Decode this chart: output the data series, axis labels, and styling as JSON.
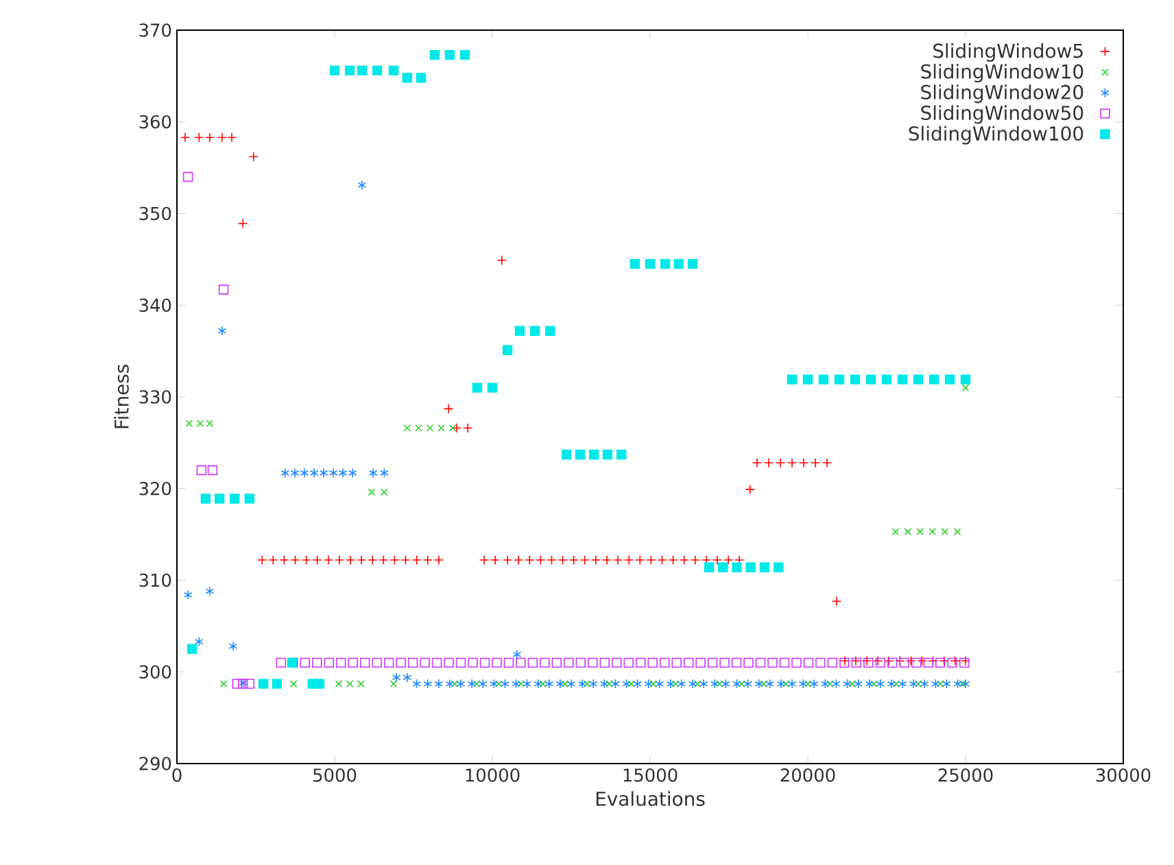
{
  "chart_data": {
    "type": "scatter",
    "xlabel": "Evaluations",
    "ylabel": "Fitness",
    "xlim": [
      0,
      30000
    ],
    "ylim": [
      290,
      370
    ],
    "xticks": [
      0,
      5000,
      10000,
      15000,
      20000,
      25000,
      30000
    ],
    "yticks": [
      290,
      300,
      310,
      320,
      330,
      340,
      350,
      360,
      370
    ],
    "legend": "top right",
    "series": [
      {
        "name": "SlidingWindow5",
        "color": "#ff0000",
        "marker": "plus",
        "x": [
          260,
          700,
          1040,
          1430,
          1740,
          2090,
          2430,
          2700,
          3050,
          3400,
          3750,
          4100,
          4450,
          4800,
          5150,
          5500,
          5850,
          6200,
          6550,
          6900,
          7250,
          7600,
          7950,
          8300,
          8610,
          8870,
          9220,
          9740,
          10090,
          10300,
          10480,
          10830,
          11180,
          11530,
          11880,
          12230,
          12580,
          12930,
          13280,
          13630,
          13980,
          14330,
          14680,
          15030,
          15380,
          15730,
          16080,
          16430,
          16780,
          17130,
          17480,
          17830,
          18170,
          18390,
          18760,
          19130,
          19500,
          19870,
          20240,
          20610,
          20910,
          21170,
          21520,
          21870,
          22220,
          22570,
          22920,
          23270,
          23620,
          23970,
          24320,
          24670,
          25000
        ],
        "values": [
          358.3,
          358.3,
          358.3,
          358.3,
          358.3,
          348.9,
          356.2,
          312.2,
          312.2,
          312.2,
          312.2,
          312.2,
          312.2,
          312.2,
          312.2,
          312.2,
          312.2,
          312.2,
          312.2,
          312.2,
          312.2,
          312.2,
          312.2,
          312.2,
          328.7,
          326.6,
          326.6,
          312.2,
          312.2,
          344.9,
          312.2,
          312.2,
          312.2,
          312.2,
          312.2,
          312.2,
          312.2,
          312.2,
          312.2,
          312.2,
          312.2,
          312.2,
          312.2,
          312.2,
          312.2,
          312.2,
          312.2,
          312.2,
          312.2,
          312.2,
          312.2,
          312.2,
          319.9,
          322.8,
          322.8,
          322.8,
          322.8,
          322.8,
          322.8,
          322.8,
          307.7,
          301.2,
          301.2,
          301.2,
          301.2,
          301.2,
          301.2,
          301.2,
          301.2,
          301.2,
          301.2,
          301.2,
          301.2
        ]
      },
      {
        "name": "SlidingWindow10",
        "color": "#33cc33",
        "marker": "cross",
        "x": [
          390,
          740,
          1040,
          1480,
          3700,
          5130,
          5480,
          5830,
          6170,
          6570,
          6870,
          7300,
          7660,
          8020,
          8380,
          8740,
          8800,
          9500,
          10200,
          10900,
          11600,
          12300,
          13000,
          13700,
          14400,
          15100,
          15800,
          16500,
          17200,
          17900,
          18600,
          19300,
          20000,
          20700,
          21400,
          22100,
          22800,
          23500,
          24200,
          24900,
          22780,
          23170,
          23560,
          23950,
          24340,
          24740,
          25000
        ],
        "values": [
          327.1,
          327.1,
          327.1,
          298.7,
          298.7,
          298.7,
          298.7,
          298.7,
          319.6,
          319.6,
          298.7,
          326.6,
          326.6,
          326.6,
          326.6,
          326.6,
          298.7,
          298.7,
          298.7,
          298.7,
          298.7,
          298.7,
          298.7,
          298.7,
          298.7,
          298.7,
          298.7,
          298.7,
          298.7,
          298.7,
          298.7,
          298.7,
          298.7,
          298.7,
          298.7,
          298.7,
          298.7,
          298.7,
          298.7,
          298.7,
          315.3,
          315.3,
          315.3,
          315.3,
          315.3,
          315.3,
          331.0
        ]
      },
      {
        "name": "SlidingWindow20",
        "color": "#1e88ff",
        "x": [
          350,
          700,
          1040,
          1430,
          1780,
          2100,
          3430,
          3740,
          4040,
          4350,
          4650,
          4960,
          5260,
          5570,
          5870,
          6220,
          6570,
          6960,
          7300,
          10780,
          7600,
          7950,
          8300,
          8650,
          9000,
          9350,
          9700,
          10050,
          10400,
          10750,
          11100,
          11450,
          11800,
          12150,
          12500,
          12850,
          13200,
          13550,
          13900,
          14250,
          14600,
          14950,
          15300,
          15650,
          16000,
          16350,
          16700,
          17050,
          17400,
          17750,
          18100,
          18450,
          18800,
          19150,
          19500,
          19850,
          20200,
          20550,
          20900,
          21250,
          21600,
          21950,
          22300,
          22650,
          23000,
          23350,
          23700,
          24050,
          24400,
          24750,
          25000
        ],
        "values": [
          308.4,
          303.3,
          308.8,
          337.2,
          302.8,
          298.8,
          321.7,
          321.7,
          321.7,
          321.7,
          321.7,
          321.7,
          321.7,
          321.7,
          353.1,
          321.7,
          321.7,
          299.4,
          299.4,
          301.9,
          298.7,
          298.7,
          298.7,
          298.7,
          298.7,
          298.7,
          298.7,
          298.7,
          298.7,
          298.7,
          298.7,
          298.7,
          298.7,
          298.7,
          298.7,
          298.7,
          298.7,
          298.7,
          298.7,
          298.7,
          298.7,
          298.7,
          298.7,
          298.7,
          298.7,
          298.7,
          298.7,
          298.7,
          298.7,
          298.7,
          298.7,
          298.7,
          298.7,
          298.7,
          298.7,
          298.7,
          298.7,
          298.7,
          298.7,
          298.7,
          298.7,
          298.7,
          298.7,
          298.7,
          298.7,
          298.7,
          298.7,
          298.7,
          298.7,
          298.7,
          298.7
        ]
      },
      {
        "name": "SlidingWindow50",
        "color": "#cc33ff",
        "marker": "square_open",
        "x": [
          350,
          780,
          1130,
          1480,
          1910,
          2090,
          2300,
          3300,
          3680,
          4060,
          4440,
          4820,
          5200,
          5580,
          5960,
          6340,
          6720,
          7100,
          7480,
          7860,
          8240,
          8620,
          9000,
          9380,
          9760,
          10140,
          10520,
          10900,
          11280,
          11660,
          12040,
          12420,
          12800,
          13180,
          13560,
          13940,
          14320,
          14700,
          15080,
          15460,
          15840,
          16220,
          16600,
          16980,
          17360,
          17740,
          18120,
          18500,
          18880,
          19260,
          19640,
          20020,
          20400,
          20780,
          21160,
          21540,
          21920,
          22300,
          22680,
          23060,
          23440,
          23820,
          24200,
          24580,
          24960
        ],
        "values": [
          354.0,
          322.0,
          322.0,
          341.7,
          298.7,
          298.7,
          298.7,
          301.0,
          301.0,
          301.0,
          301.0,
          301.0,
          301.0,
          301.0,
          301.0,
          301.0,
          301.0,
          301.0,
          301.0,
          301.0,
          301.0,
          301.0,
          301.0,
          301.0,
          301.0,
          301.0,
          301.0,
          301.0,
          301.0,
          301.0,
          301.0,
          301.0,
          301.0,
          301.0,
          301.0,
          301.0,
          301.0,
          301.0,
          301.0,
          301.0,
          301.0,
          301.0,
          301.0,
          301.0,
          301.0,
          301.0,
          301.0,
          301.0,
          301.0,
          301.0,
          301.0,
          301.0,
          301.0,
          301.0,
          301.0,
          301.0,
          301.0,
          301.0,
          301.0,
          301.0,
          301.0,
          301.0,
          301.0,
          301.0,
          301.0
        ]
      },
      {
        "name": "SlidingWindow100",
        "color": "#00e8e8",
        "marker": "square",
        "x": [
          480,
          910,
          1350,
          1830,
          2300,
          2740,
          3170,
          3650,
          4300,
          4520,
          5000,
          5480,
          5870,
          6350,
          6870,
          7300,
          7740,
          8170,
          8650,
          9130,
          9520,
          10000,
          10480,
          10870,
          11350,
          11830,
          12350,
          12780,
          13220,
          13650,
          14090,
          14520,
          15000,
          15480,
          15910,
          16350,
          16870,
          17310,
          17750,
          18190,
          18630,
          19070,
          19500,
          20000,
          20500,
          21000,
          21500,
          22000,
          22500,
          23000,
          23500,
          24000,
          24500,
          25000
        ],
        "values": [
          302.5,
          318.9,
          318.9,
          318.9,
          318.9,
          298.7,
          298.7,
          301.0,
          298.7,
          298.7,
          365.6,
          365.6,
          365.6,
          365.6,
          365.6,
          364.8,
          364.8,
          367.3,
          367.3,
          367.3,
          331.0,
          331.0,
          335.1,
          337.2,
          337.2,
          337.2,
          323.7,
          323.7,
          323.7,
          323.7,
          323.7,
          344.5,
          344.5,
          344.5,
          344.5,
          344.5,
          311.4,
          311.4,
          311.4,
          311.4,
          311.4,
          311.4,
          331.9,
          331.9,
          331.9,
          331.9,
          331.9,
          331.9,
          331.9,
          331.9,
          331.9,
          331.9,
          331.9,
          331.9
        ]
      }
    ]
  }
}
